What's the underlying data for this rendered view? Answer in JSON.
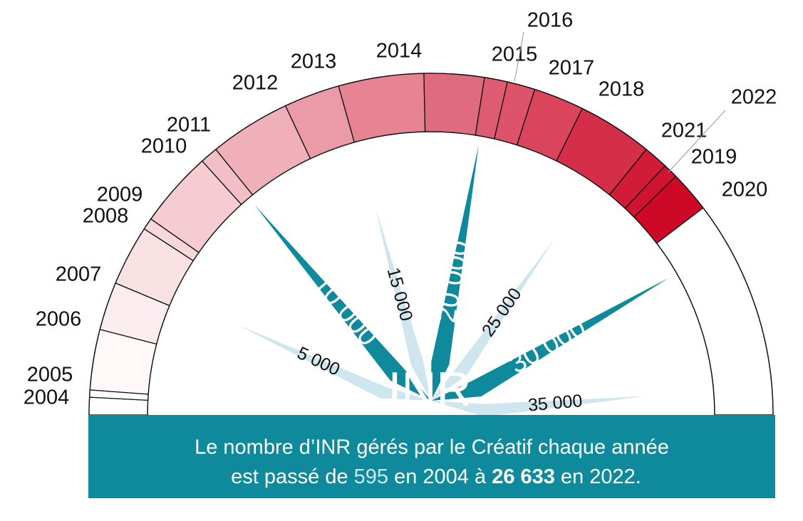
{
  "chart_data": {
    "type": "gauge",
    "center_label": "INR",
    "categories": [
      "2004",
      "2005",
      "2006",
      "2007",
      "2008",
      "2009",
      "2010",
      "2011",
      "2012",
      "2013",
      "2014",
      "2015",
      "2016",
      "2017",
      "2018",
      "2019",
      "2020",
      "2021",
      "2022"
    ],
    "values": [
      595,
      840,
      2900,
      4540,
      6600,
      7000,
      9600,
      10200,
      12960,
      14860,
      17760,
      19800,
      20580,
      21530,
      23250,
      27140,
      28540,
      25800,
      26633
    ],
    "color": "#cc0020",
    "xlim": [
      0,
      36000
    ],
    "xticks": [
      {
        "value": 5000,
        "label": "5 000"
      },
      {
        "value": 10000,
        "label": "10 000"
      },
      {
        "value": 15000,
        "label": "15 000"
      },
      {
        "value": 20000,
        "label": "20 000"
      },
      {
        "value": 25000,
        "label": "25 000"
      },
      {
        "value": 30000,
        "label": "30 000"
      },
      {
        "value": 35000,
        "label": "35 000"
      }
    ],
    "caption": {
      "line1": "Le nombre d’INR gérés par le Créatif chaque année",
      "line2": [
        "est passé de ",
        "595",
        " en 2004 à ",
        "26 633",
        " en 2022."
      ]
    }
  }
}
